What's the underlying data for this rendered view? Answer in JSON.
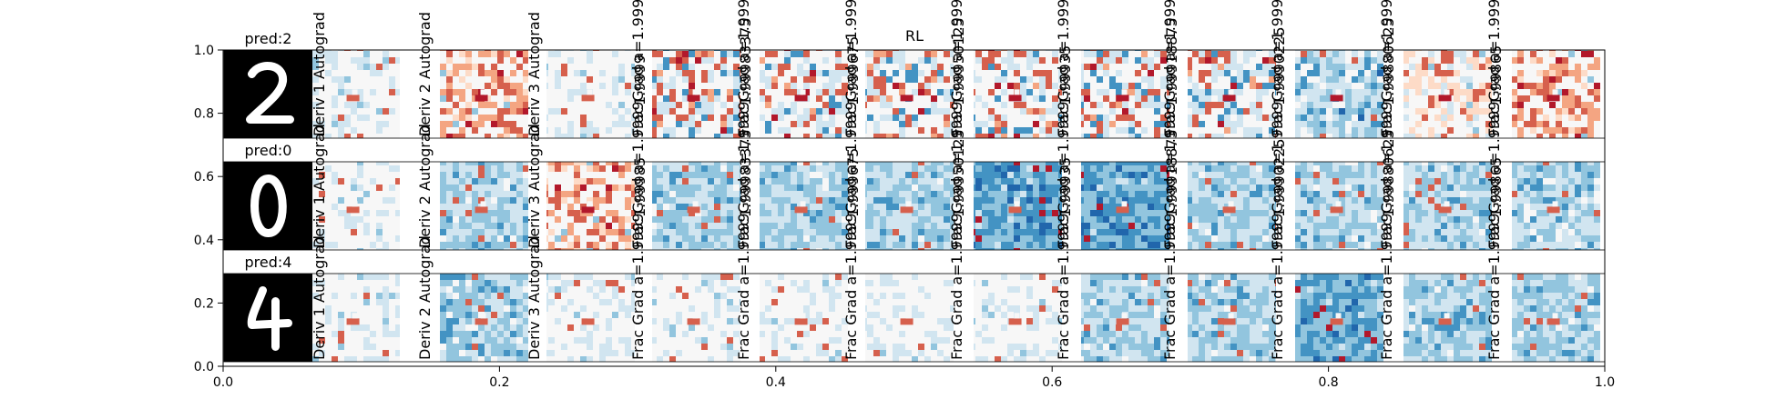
{
  "chart_data": {
    "type": "heatmap",
    "title": "RL",
    "xlabel": "",
    "ylabel": "",
    "xlim": [
      0.0,
      1.0
    ],
    "ylim": [
      0.0,
      1.0
    ],
    "x_ticks": [
      "0.0",
      "0.2",
      "0.4",
      "0.6",
      "0.8",
      "1.0"
    ],
    "y_ticks": [
      "0.0",
      "0.2",
      "0.4",
      "0.6",
      "0.8",
      "1.0"
    ],
    "grid": false,
    "legend": "none",
    "colormap": "RdBu_r",
    "columns": [
      "Deriv 1 Autograd",
      "Deriv 2 Autograd",
      "Deriv 3 Autograd",
      "Frac Grad a=1.9999",
      "Frac Grad a=1.9999",
      "Frac Grad a=1.9999",
      "Frac Grad a=1.9999",
      "Frac Grad a=1.9999",
      "Frac Grad a=1.9999",
      "Frac Grad a=1.9999",
      "Frac Grad a=1.9999",
      "Frac Grad a=1.9999"
    ],
    "rows": [
      {
        "prediction": "pred:2",
        "digit": "2",
        "map_tones": [
          "blue-light",
          "red",
          "blue-light",
          "mixed",
          "mixed",
          "mixed",
          "mixed",
          "mixed",
          "mixed",
          "mixed-blue",
          "mixed-red",
          "red"
        ],
        "extra_labels": [
          "",
          "",
          "",
          "1.9999",
          "1.99983375",
          "1.999675",
          "1.99950125",
          "1.99935",
          "1.99918875",
          "1.9990225",
          "1.99880625",
          "1.99865"
        ]
      },
      {
        "prediction": "pred:0",
        "digit": "0",
        "map_tones": [
          "blue-light",
          "blue",
          "red",
          "blue",
          "blue",
          "blue",
          "blue-dark",
          "blue-dark",
          "blue",
          "blue",
          "blue",
          "blue"
        ],
        "extra_labels": [
          "",
          "",
          "",
          "1.99985",
          "1.99983375",
          "1.999675",
          "1.99950125",
          "1.99935",
          "1.99918875",
          "1.9990225",
          "1.99880625",
          "1.99865"
        ]
      },
      {
        "prediction": "pred:4",
        "digit": "4",
        "map_tones": [
          "blue-light",
          "blue",
          "blue-light",
          "blue-light",
          "blue-light",
          "blue-light",
          "blue-light",
          "blue",
          "blue",
          "blue-dark",
          "blue",
          "blue"
        ],
        "extra_labels": [
          "",
          "",
          "",
          "",
          "",
          "",
          "",
          "",
          "",
          "",
          "",
          ""
        ]
      }
    ],
    "colors": {
      "red": "#d6604d",
      "red_dark": "#b2182b",
      "white": "#f7f7f7",
      "blue_light": "#d1e5f0",
      "blue": "#92c5de",
      "blue_dark": "#4393c3",
      "blue_deep": "#2166ac",
      "digit_background": "#000000",
      "digit_stroke": "#ffffff"
    }
  }
}
